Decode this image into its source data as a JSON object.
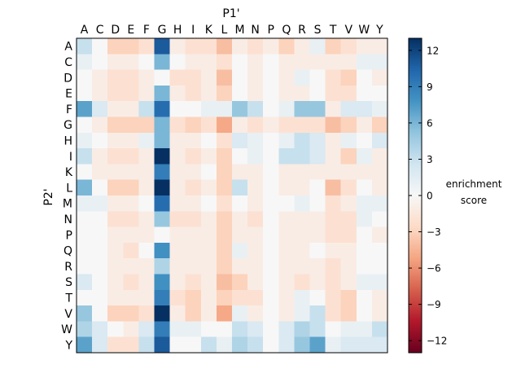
{
  "chart_data": {
    "type": "heatmap",
    "xlabel": "P1'",
    "ylabel": "P2'",
    "x_categories": [
      "A",
      "C",
      "D",
      "E",
      "F",
      "G",
      "H",
      "I",
      "K",
      "L",
      "M",
      "N",
      "P",
      "Q",
      "R",
      "S",
      "T",
      "V",
      "W",
      "Y"
    ],
    "y_categories": [
      "A",
      "C",
      "D",
      "E",
      "F",
      "G",
      "H",
      "I",
      "K",
      "L",
      "M",
      "N",
      "P",
      "Q",
      "R",
      "S",
      "T",
      "V",
      "W",
      "Y"
    ],
    "values": [
      [
        3,
        0,
        -3,
        -3,
        -2,
        11,
        -1,
        -2,
        -2,
        -4,
        -1,
        -2,
        -1,
        -3,
        -1,
        1,
        -3,
        -2,
        -1,
        -1
      ],
      [
        1,
        0,
        -1,
        -1,
        0,
        6,
        0,
        -1,
        -1,
        -2,
        0,
        -1,
        0,
        -1,
        -1,
        -1,
        -1,
        -1,
        1,
        1
      ],
      [
        0,
        -1,
        -2,
        -2,
        -1,
        0,
        -2,
        -2,
        -1,
        -4,
        0,
        -1,
        0,
        -1,
        1,
        0,
        -2,
        -3,
        0,
        -1
      ],
      [
        0,
        -1,
        -2,
        -2,
        -1,
        6,
        -1,
        -2,
        -1,
        -3,
        0,
        -1,
        0,
        -1,
        -1,
        0,
        -2,
        -2,
        0,
        0
      ],
      [
        7,
        2,
        -1,
        -1,
        3,
        10,
        0,
        0,
        1,
        1,
        5,
        3,
        0,
        1,
        5,
        5,
        -1,
        2,
        2,
        1
      ],
      [
        0,
        -1,
        -3,
        -3,
        -3,
        6,
        -2,
        -3,
        -2,
        -5,
        -1,
        -2,
        -1,
        -2,
        -2,
        -2,
        -4,
        -3,
        -1,
        -3
      ],
      [
        1,
        0,
        -1,
        -1,
        1,
        6,
        -1,
        -1,
        0,
        -2,
        2,
        1,
        0,
        1,
        3,
        2,
        -1,
        1,
        0,
        2
      ],
      [
        3,
        -1,
        -2,
        -2,
        -1,
        13,
        -1,
        -2,
        -1,
        -3,
        0,
        1,
        0,
        3,
        3,
        2,
        -1,
        -3,
        1,
        -1
      ],
      [
        0,
        -1,
        -1,
        -1,
        -1,
        9,
        -1,
        -1,
        0,
        -3,
        -1,
        -1,
        0,
        -1,
        -1,
        -1,
        -1,
        -1,
        -1,
        -1
      ],
      [
        6,
        0,
        -3,
        -3,
        -1,
        13,
        -1,
        -2,
        -1,
        -3,
        3,
        -1,
        0,
        -1,
        -1,
        0,
        -4,
        -2,
        0,
        -1
      ],
      [
        1,
        1,
        -1,
        -1,
        0,
        10,
        -1,
        -1,
        0,
        -2,
        0,
        -1,
        0,
        0,
        1,
        0,
        -2,
        -1,
        1,
        1
      ],
      [
        0,
        0,
        -2,
        -2,
        -1,
        5,
        -2,
        -2,
        -1,
        -3,
        -1,
        -2,
        0,
        -1,
        -1,
        -1,
        -2,
        -2,
        1,
        0
      ],
      [
        0,
        0,
        -1,
        -1,
        -1,
        0,
        -1,
        -1,
        -1,
        -3,
        -1,
        -1,
        0,
        -1,
        -1,
        -1,
        -2,
        -2,
        0,
        -1
      ],
      [
        0,
        0,
        -1,
        -2,
        0,
        8,
        -1,
        -1,
        -1,
        -3,
        1,
        -1,
        0,
        -1,
        -1,
        0,
        -1,
        -1,
        0,
        0
      ],
      [
        0,
        0,
        -1,
        -1,
        -1,
        4,
        -1,
        -1,
        -1,
        -3,
        -1,
        -1,
        0,
        -1,
        -1,
        -1,
        -2,
        -1,
        0,
        0
      ],
      [
        2,
        0,
        -1,
        -2,
        -1,
        8,
        -1,
        -2,
        -1,
        -4,
        -3,
        -1,
        0,
        -1,
        -2,
        -1,
        -2,
        -1,
        1,
        1
      ],
      [
        0,
        0,
        -1,
        -1,
        -1,
        9,
        -2,
        -3,
        -1,
        -3,
        -2,
        -2,
        0,
        -1,
        1,
        0,
        -2,
        -3,
        0,
        -1
      ],
      [
        5,
        0,
        -3,
        -3,
        -2,
        13,
        -1,
        -3,
        -1,
        -5,
        1,
        -1,
        0,
        -1,
        1,
        3,
        -2,
        -3,
        0,
        -1
      ],
      [
        4,
        2,
        0,
        -1,
        2,
        9,
        1,
        1,
        0,
        0,
        3,
        2,
        0,
        2,
        4,
        3,
        0,
        1,
        1,
        3
      ],
      [
        7,
        2,
        -2,
        -2,
        3,
        11,
        0,
        0,
        3,
        1,
        4,
        3,
        0,
        2,
        5,
        7,
        1,
        2,
        2,
        2
      ]
    ],
    "colorbar": {
      "label": "enrichment score",
      "label_lines": [
        "enrichment",
        "score"
      ],
      "vmin": -13,
      "vmax": 13,
      "ticks": [
        12,
        9,
        6,
        3,
        0,
        -3,
        -6,
        -9,
        -12
      ],
      "colormap": "RdBu",
      "stops": [
        "#67001f",
        "#b2182b",
        "#d6604d",
        "#f4a582",
        "#fddbc7",
        "#f7f7f7",
        "#d1e5f0",
        "#92c5de",
        "#4393c3",
        "#2166ac",
        "#053061"
      ]
    }
  }
}
